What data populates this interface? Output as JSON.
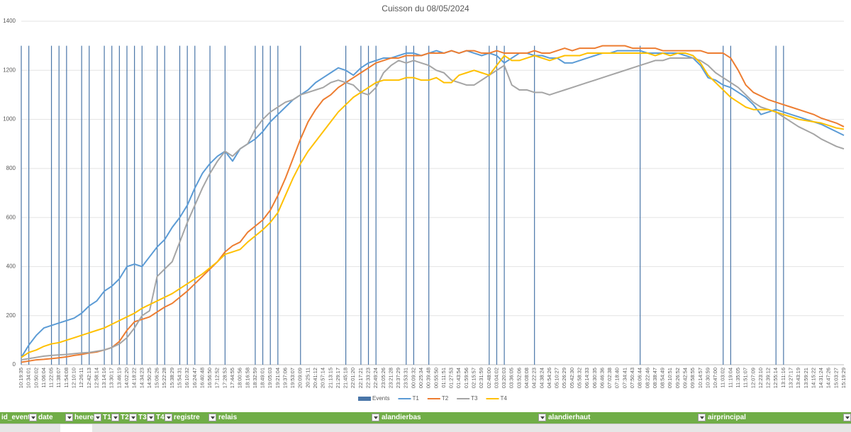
{
  "chart_data": {
    "type": "line",
    "title": "Cuisson du 08/05/2024",
    "categories": [
      "10:19:35",
      "10:34:01",
      "10:50:02",
      "11:06:04",
      "11:22:05",
      "11:38:07",
      "11:54:08",
      "12:10:10",
      "12:26:11",
      "12:42:13",
      "12:58:14",
      "13:14:16",
      "13:30:17",
      "13:46:19",
      "14:02:20",
      "14:18:22",
      "14:34:23",
      "14:50:25",
      "15:06:26",
      "15:22:28",
      "15:38:29",
      "15:54:31",
      "16:10:32",
      "16:24:47",
      "16:40:48",
      "16:56:50",
      "17:12:52",
      "17:28:53",
      "17:44:55",
      "18:00:56",
      "18:16:58",
      "18:32:59",
      "18:49:01",
      "19:05:03",
      "19:21:04",
      "19:37:06",
      "19:53:07",
      "20:09:09",
      "20:25:11",
      "20:41:12",
      "20:57:14",
      "21:13:15",
      "21:29:17",
      "21:45:18",
      "22:01:20",
      "22:17:21",
      "22:33:23",
      "22:49:24",
      "23:05:26",
      "23:21:28",
      "23:37:29",
      "23:53:31",
      "00:09:32",
      "00:25:34",
      "00:39:48",
      "00:55:50",
      "01:11:51",
      "01:27:53",
      "01:43:54",
      "01:59:56",
      "02:15:57",
      "02:31:59",
      "02:48:00",
      "03:04:02",
      "03:20:03",
      "03:36:05",
      "03:52:06",
      "04:08:08",
      "04:22:23",
      "04:38:24",
      "04:54:26",
      "05:10:27",
      "05:26:29",
      "05:42:30",
      "05:58:32",
      "06:14:33",
      "06:30:35",
      "06:46:36",
      "07:02:38",
      "07:18:40",
      "07:34:41",
      "07:50:43",
      "08:06:44",
      "08:22:46",
      "08:38:47",
      "08:54:49",
      "09:10:51",
      "09:26:52",
      "09:42:54",
      "09:58:55",
      "10:14:57",
      "10:30:59",
      "10:47:00",
      "11:03:02",
      "11:19:04",
      "11:35:05",
      "11:51:07",
      "12:07:09",
      "12:23:10",
      "12:39:12",
      "12:55:14",
      "13:11:16",
      "13:27:17",
      "13:43:19",
      "13:59:21",
      "14:15:22",
      "14:31:24",
      "14:47:26",
      "15:03:27",
      "15:19:29"
    ],
    "series": [
      {
        "name": "Events",
        "type": "bar",
        "color": "#4a76a8",
        "values": [
          1300,
          1300,
          null,
          null,
          1300,
          1300,
          1300,
          null,
          1300,
          1300,
          null,
          1300,
          1300,
          1300,
          1300,
          1300,
          1300,
          null,
          1300,
          1300,
          null,
          1300,
          1300,
          1300,
          null,
          1300,
          null,
          1300,
          null,
          null,
          null,
          1300,
          1300,
          1300,
          1300,
          null,
          null,
          1300,
          null,
          null,
          null,
          null,
          null,
          1300,
          null,
          1300,
          1300,
          1300,
          null,
          null,
          null,
          1300,
          1300,
          null,
          1300,
          null,
          null,
          null,
          null,
          null,
          null,
          null,
          1300,
          1300,
          1300,
          null,
          null,
          null,
          1300,
          null,
          null,
          null,
          null,
          null,
          null,
          null,
          null,
          null,
          null,
          null,
          null,
          null,
          1300,
          null,
          null,
          null,
          null,
          null,
          null,
          null,
          null,
          null,
          null,
          1300,
          1300,
          null,
          null,
          null,
          null,
          null,
          1300,
          1300,
          null,
          null,
          null,
          null,
          null,
          null,
          null,
          null
        ]
      },
      {
        "name": "T1",
        "color": "#5b9bd5",
        "values": [
          30,
          80,
          120,
          150,
          160,
          170,
          180,
          190,
          210,
          240,
          260,
          300,
          320,
          350,
          400,
          410,
          400,
          440,
          480,
          510,
          560,
          600,
          650,
          720,
          780,
          820,
          850,
          870,
          830,
          880,
          900,
          920,
          950,
          990,
          1020,
          1050,
          1080,
          1100,
          1120,
          1150,
          1170,
          1190,
          1210,
          1200,
          1180,
          1210,
          1230,
          1240,
          1250,
          1250,
          1260,
          1270,
          1270,
          1260,
          1270,
          1280,
          1270,
          1280,
          1270,
          1280,
          1270,
          1260,
          1270,
          1260,
          1230,
          1250,
          1270,
          1270,
          1260,
          1260,
          1250,
          1250,
          1230,
          1230,
          1240,
          1250,
          1260,
          1270,
          1270,
          1280,
          1280,
          1280,
          1280,
          1270,
          1270,
          1270,
          1270,
          1270,
          1260,
          1250,
          1220,
          1170,
          1160,
          1140,
          1130,
          1110,
          1090,
          1060,
          1020,
          1030,
          1040,
          1030,
          1020,
          1010,
          1000,
          990,
          980,
          965,
          950,
          935
        ]
      },
      {
        "name": "T2",
        "color": "#ed7d31",
        "values": [
          10,
          15,
          20,
          22,
          25,
          28,
          32,
          38,
          42,
          48,
          52,
          60,
          70,
          95,
          140,
          175,
          185,
          195,
          215,
          235,
          250,
          275,
          300,
          330,
          360,
          390,
          420,
          460,
          485,
          500,
          540,
          565,
          590,
          630,
          690,
          760,
          840,
          920,
          990,
          1040,
          1080,
          1100,
          1130,
          1150,
          1170,
          1190,
          1210,
          1230,
          1240,
          1250,
          1250,
          1260,
          1260,
          1260,
          1270,
          1270,
          1270,
          1280,
          1270,
          1280,
          1280,
          1270,
          1270,
          1280,
          1270,
          1270,
          1270,
          1270,
          1280,
          1270,
          1270,
          1280,
          1290,
          1280,
          1290,
          1290,
          1290,
          1300,
          1300,
          1300,
          1300,
          1290,
          1290,
          1290,
          1290,
          1280,
          1280,
          1280,
          1280,
          1280,
          1280,
          1270,
          1270,
          1270,
          1250,
          1200,
          1140,
          1110,
          1095,
          1080,
          1070,
          1060,
          1050,
          1040,
          1030,
          1020,
          1005,
          995,
          985,
          970
        ]
      },
      {
        "name": "T3",
        "color": "#a5a5a5",
        "values": [
          20,
          25,
          30,
          35,
          38,
          40,
          42,
          45,
          48,
          50,
          55,
          60,
          70,
          85,
          110,
          150,
          200,
          220,
          360,
          390,
          420,
          500,
          580,
          650,
          720,
          780,
          830,
          870,
          850,
          880,
          900,
          960,
          1000,
          1030,
          1050,
          1070,
          1080,
          1100,
          1110,
          1120,
          1130,
          1150,
          1160,
          1150,
          1140,
          1110,
          1100,
          1130,
          1190,
          1220,
          1240,
          1230,
          1240,
          1230,
          1220,
          1200,
          1190,
          1160,
          1150,
          1140,
          1140,
          1160,
          1180,
          1200,
          1220,
          1140,
          1120,
          1120,
          1110,
          1110,
          1100,
          1110,
          1120,
          1130,
          1140,
          1150,
          1160,
          1170,
          1180,
          1190,
          1200,
          1210,
          1220,
          1230,
          1240,
          1240,
          1250,
          1250,
          1250,
          1250,
          1240,
          1220,
          1190,
          1170,
          1150,
          1130,
          1100,
          1070,
          1050,
          1040,
          1030,
          1010,
          990,
          970,
          955,
          940,
          920,
          905,
          890,
          880
        ]
      },
      {
        "name": "T4",
        "color": "#ffc000",
        "values": [
          30,
          50,
          60,
          75,
          85,
          90,
          100,
          110,
          120,
          130,
          140,
          150,
          165,
          180,
          195,
          210,
          230,
          245,
          260,
          275,
          290,
          310,
          330,
          350,
          370,
          395,
          420,
          450,
          460,
          470,
          500,
          525,
          550,
          580,
          620,
          690,
          760,
          820,
          870,
          910,
          950,
          990,
          1030,
          1060,
          1090,
          1110,
          1130,
          1150,
          1160,
          1160,
          1160,
          1170,
          1170,
          1160,
          1160,
          1170,
          1150,
          1150,
          1180,
          1190,
          1200,
          1190,
          1180,
          1220,
          1260,
          1240,
          1240,
          1250,
          1260,
          1250,
          1240,
          1250,
          1260,
          1260,
          1260,
          1270,
          1270,
          1270,
          1270,
          1270,
          1270,
          1270,
          1270,
          1270,
          1260,
          1270,
          1260,
          1270,
          1270,
          1260,
          1230,
          1180,
          1150,
          1120,
          1090,
          1070,
          1050,
          1040,
          1040,
          1040,
          1030,
          1020,
          1010,
          1000,
          995,
          990,
          985,
          975,
          965,
          960
        ]
      }
    ],
    "ylim": [
      0,
      1400
    ],
    "yticks": [
      0,
      200,
      400,
      600,
      800,
      1000,
      1200,
      1400
    ],
    "grid": true,
    "legend": "bottom"
  },
  "table": {
    "headers": [
      "id_event",
      "date",
      "heure",
      "T1",
      "T2",
      "T3",
      "T4",
      "registre",
      "relais",
      "alandierbas",
      "alandierhaut",
      "airprincipal"
    ]
  }
}
